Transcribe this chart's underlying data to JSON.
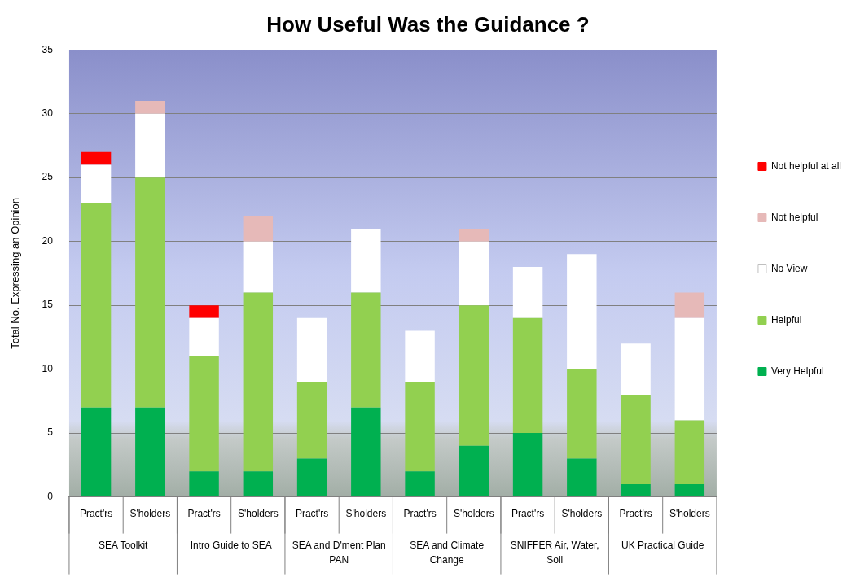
{
  "chart_data": {
    "type": "bar",
    "title": "How Useful Was the Guidance ?",
    "ylabel": "Total No. Expressing an Opinion",
    "categories": [
      "Pract'rs",
      "S'holders",
      "Pract'rs",
      "S'holders",
      "Pract'rs",
      "S'holders",
      "Pract'rs",
      "S'holders",
      "Pract'rs",
      "S'holders",
      "Pract'rs",
      "S'holders"
    ],
    "annotations": [
      "SEA Toolkit",
      "Intro Guide to SEA",
      "SEA and D'ment Plan PAN",
      "SEA and Climate Change",
      "SNIFFER Air, Water, Soil",
      "UK Practical Guide"
    ],
    "stacked": true,
    "series": [
      {
        "name": "Very Helpful",
        "color": "#00b050",
        "values": [
          7,
          7,
          2,
          2,
          3,
          7,
          2,
          4,
          5,
          3,
          1,
          1
        ]
      },
      {
        "name": "Helpful",
        "color": "#92d050",
        "values": [
          16,
          18,
          9,
          14,
          6,
          9,
          7,
          11,
          9,
          7,
          7,
          5
        ]
      },
      {
        "name": "No View",
        "color": "#ffffff",
        "values": [
          3,
          5,
          3,
          4,
          5,
          5,
          4,
          5,
          4,
          9,
          4,
          8
        ]
      },
      {
        "name": "Not helpful",
        "color": "#e6b9b8",
        "values": [
          0,
          1,
          0,
          2,
          0,
          0,
          0,
          1,
          0,
          0,
          0,
          2
        ]
      },
      {
        "name": "Not helpful at all",
        "color": "#ff0000",
        "values": [
          1,
          0,
          1,
          0,
          0,
          0,
          0,
          0,
          0,
          0,
          0,
          0
        ]
      }
    ],
    "ylim": [
      0,
      35
    ],
    "yticks": [
      0,
      5,
      10,
      15,
      20,
      25,
      30,
      35
    ],
    "grid": "y",
    "legend": "right"
  }
}
